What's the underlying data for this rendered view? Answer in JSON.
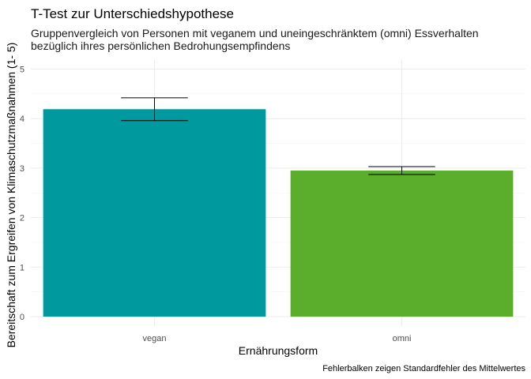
{
  "chart_data": {
    "type": "bar",
    "title": "T-Test zur Unterschiedshypothese",
    "subtitle_lines": [
      "Gruppenvergleich von Personen mit veganem und uneingeschränktem (omni) Essverhalten",
      "bezüglich ihres persönlichen Bedrohungsempfindens"
    ],
    "xlabel": "Ernährungsform",
    "ylabel": "Bereitschaft zum Ergreifen von Klimaschutzmaßnahmen (1- 5)",
    "caption": "Fehlerbalken zeigen Standardfehler des Mittelwertes",
    "categories": [
      "vegan",
      "omni"
    ],
    "values": [
      4.19,
      2.95
    ],
    "error_low": [
      3.96,
      2.87
    ],
    "error_high": [
      4.42,
      3.03
    ],
    "colors": [
      "#009A9E",
      "#5AAE2C"
    ],
    "ylim": [
      0,
      5.2
    ],
    "yticks": [
      0,
      1,
      2,
      3,
      4,
      5
    ],
    "grid": true
  }
}
